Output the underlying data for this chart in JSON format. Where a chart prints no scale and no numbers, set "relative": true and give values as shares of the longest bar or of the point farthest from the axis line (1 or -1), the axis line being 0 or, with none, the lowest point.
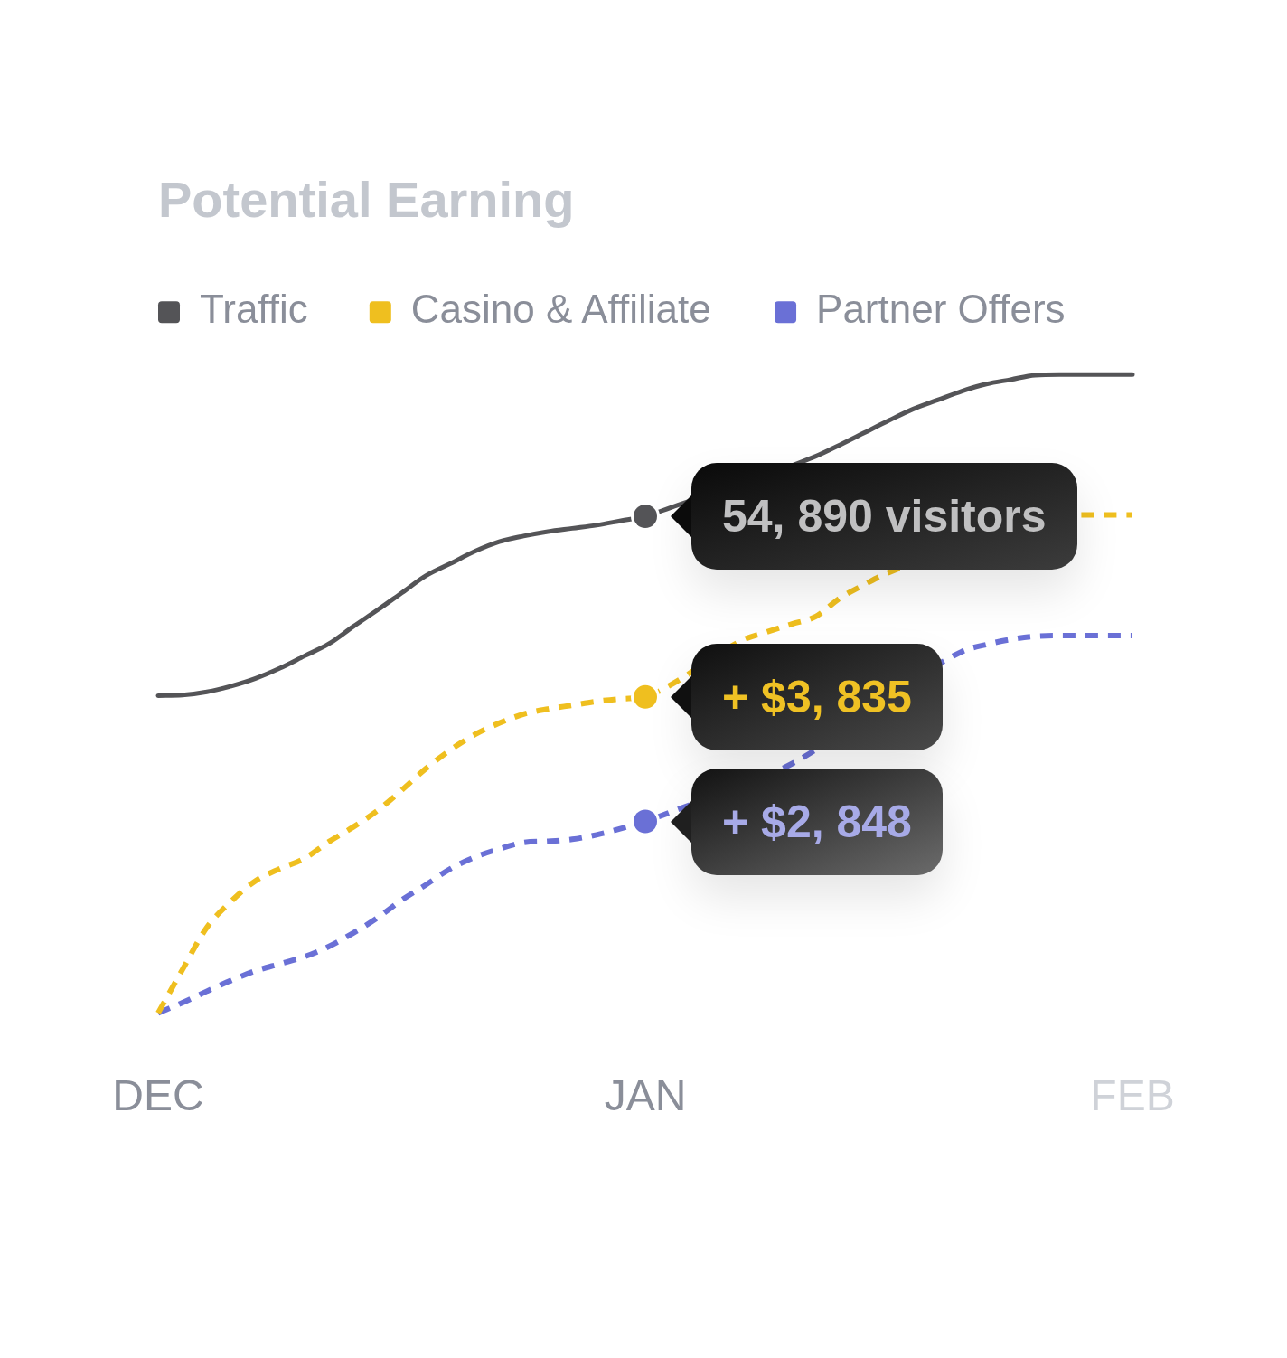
{
  "chart_data": {
    "type": "line",
    "title": "Potential Earning",
    "relative": true,
    "legend": "top left",
    "tick_labels": "x",
    "categories": [
      "DEC",
      null,
      null,
      null,
      null,
      null,
      null,
      null,
      null,
      null,
      null,
      null,
      null,
      null,
      null,
      null,
      null,
      null,
      null,
      null,
      "JAN",
      null,
      null,
      null,
      null,
      null,
      null,
      null,
      null,
      null,
      null,
      null,
      null,
      null,
      null,
      null,
      null,
      null,
      null,
      null,
      "FEB"
    ],
    "annotations": [
      {
        "text": "54, 890 visitors",
        "x": "JAN",
        "y": 0.778
      },
      {
        "text": "+ $3, 835",
        "x": "JAN",
        "y": 0.495
      },
      {
        "text": "+ $2, 848",
        "x": "JAN",
        "y": 0.3
      }
    ],
    "series": [
      {
        "name": "Traffic",
        "color": "#545457",
        "line_style": "solid",
        "values": [
          0.497,
          0.498,
          0.503,
          0.512,
          0.524,
          0.54,
          0.559,
          0.578,
          0.605,
          0.631,
          0.658,
          0.685,
          0.704,
          0.723,
          0.738,
          0.747,
          0.754,
          0.759,
          0.764,
          0.771,
          0.778,
          0.791,
          null,
          null,
          null,
          null,
          null,
          0.872,
          0.89,
          0.909,
          0.928,
          0.946,
          0.96,
          0.974,
          0.985,
          0.992,
          0.999,
          1,
          1,
          1,
          1
        ]
      },
      {
        "name": "Casino & Affiliate",
        "color": "#efbf1f",
        "line_style": "dashed",
        "values": [
          0,
          0.068,
          0.134,
          0.175,
          0.207,
          0.226,
          0.242,
          0.268,
          0.291,
          0.317,
          0.349,
          0.383,
          0.412,
          0.436,
          0.454,
          0.468,
          0.476,
          0.482,
          0.488,
          0.492,
          0.495,
          0.513,
          null,
          null,
          0.584,
          0.597,
          0.609,
          0.621,
          0.65,
          0.671,
          0.69,
          null,
          null,
          null,
          null,
          null,
          null,
          null,
          0.78,
          0.78,
          0.78
        ]
      },
      {
        "name": "Partner Offers",
        "color": "#6a70d6",
        "line_style": "dashed",
        "values": [
          0,
          0.016,
          0.034,
          0.051,
          0.066,
          0.077,
          0.088,
          0.104,
          0.125,
          0.149,
          0.177,
          0.201,
          0.226,
          0.244,
          0.257,
          0.267,
          0.269,
          0.272,
          0.279,
          0.289,
          0.3,
          0.314,
          null,
          null,
          null,
          null,
          0.39,
          null,
          null,
          null,
          null,
          null,
          null,
          0.566,
          0.577,
          0.585,
          0.59,
          0.591,
          0.591,
          0.591,
          0.591
        ]
      }
    ]
  }
}
